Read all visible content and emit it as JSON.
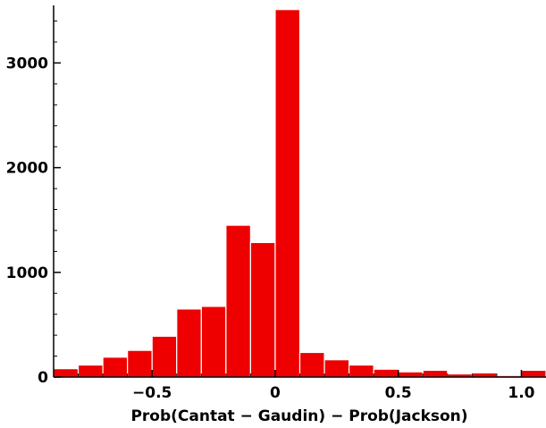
{
  "chart_data": {
    "type": "bar",
    "title": "",
    "xlabel": "Prob(Cantat − Gaudin) − Prob(Jackson)",
    "ylabel": "",
    "color": "#ee0000",
    "edge_color": "#ffffff",
    "xlim": [
      -0.9,
      1.1
    ],
    "ylim": [
      0,
      3550
    ],
    "grid": false,
    "legend": "none",
    "bin_width": 0.1,
    "bins": [
      {
        "x": -0.85,
        "value": 80
      },
      {
        "x": -0.75,
        "value": 115
      },
      {
        "x": -0.65,
        "value": 190
      },
      {
        "x": -0.55,
        "value": 255
      },
      {
        "x": -0.45,
        "value": 390
      },
      {
        "x": -0.35,
        "value": 650
      },
      {
        "x": -0.25,
        "value": 675
      },
      {
        "x": -0.15,
        "value": 1450
      },
      {
        "x": -0.05,
        "value": 1285
      },
      {
        "x": 0.05,
        "value": 3510
      },
      {
        "x": 0.15,
        "value": 235
      },
      {
        "x": 0.25,
        "value": 165
      },
      {
        "x": 0.35,
        "value": 115
      },
      {
        "x": 0.45,
        "value": 75
      },
      {
        "x": 0.55,
        "value": 50
      },
      {
        "x": 0.65,
        "value": 65
      },
      {
        "x": 0.75,
        "value": 30
      },
      {
        "x": 0.85,
        "value": 40
      },
      {
        "x": 0.95,
        "value": 15
      },
      {
        "x": 1.05,
        "value": 65
      }
    ],
    "x_ticks": [
      {
        "value": -0.5,
        "label": "−0.5"
      },
      {
        "value": 0,
        "label": "0"
      },
      {
        "value": 0.5,
        "label": "0.5"
      },
      {
        "value": 1.0,
        "label": "1.0"
      }
    ],
    "y_ticks": [
      {
        "value": 0,
        "label": "0"
      },
      {
        "value": 1000,
        "label": "1000"
      },
      {
        "value": 2000,
        "label": "2000"
      },
      {
        "value": 3000,
        "label": "3000"
      }
    ]
  }
}
